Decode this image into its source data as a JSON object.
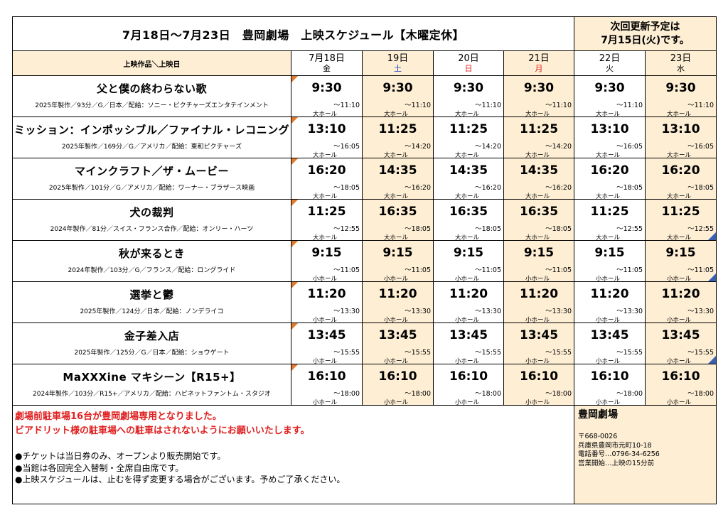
{
  "header": {
    "title": "7月18日～7月23日　豊岡劇場　上映スケジュール【木曜定休】",
    "notice": [
      "次回更新予定は",
      "7月15日(火)です。"
    ]
  },
  "table_header": {
    "corner_label": "上映作品＼上映日",
    "days": [
      {
        "date": "7月18日",
        "weekday": "金",
        "highlight": false
      },
      {
        "date": "19日",
        "weekday": "土",
        "highlight": true
      },
      {
        "date": "20日",
        "weekday": "日",
        "highlight": false
      },
      {
        "date": "21日",
        "weekday": "月",
        "highlight": true
      },
      {
        "date": "22日",
        "weekday": "火",
        "highlight": false
      },
      {
        "date": "23日",
        "weekday": "水",
        "highlight": true
      }
    ]
  },
  "colors": {
    "highlight": "#fdeed4",
    "saturday": "#1f3fc8",
    "sunday_holiday": "#e02020",
    "notice_red": "#e02020",
    "corner_orange": "#e07a2c",
    "corner_blue": "#3a5fb0"
  },
  "movies": [
    {
      "title": "父と僕の終わらない歌",
      "info": "2025年製作／93分／G／日本／配給：ソニー・ピクチャーズエンタテインメント",
      "showings": [
        {
          "start": "9:30",
          "end": "～11:10",
          "hall": "大ホール"
        },
        {
          "start": "9:30",
          "end": "～11:10",
          "hall": "大ホール"
        },
        {
          "start": "9:30",
          "end": "～11:10",
          "hall": "大ホール"
        },
        {
          "start": "9:30",
          "end": "～11:10",
          "hall": "大ホール"
        },
        {
          "start": "9:30",
          "end": "～11:10",
          "hall": "大ホール"
        },
        {
          "start": "9:30",
          "end": "～11:10",
          "hall": "大ホール"
        }
      ]
    },
    {
      "title": "ミッション：インポッシブル／ファイナル・レコニング",
      "info": "2025年製作／169分／G／アメリカ／配給：東和ピクチャーズ",
      "showings": [
        {
          "start": "13:10",
          "end": "～16:05",
          "hall": "大ホール"
        },
        {
          "start": "11:25",
          "end": "～14:20",
          "hall": "大ホール"
        },
        {
          "start": "11:25",
          "end": "～14:20",
          "hall": "大ホール"
        },
        {
          "start": "11:25",
          "end": "～14:20",
          "hall": "大ホール"
        },
        {
          "start": "13:10",
          "end": "～16:05",
          "hall": "大ホール"
        },
        {
          "start": "13:10",
          "end": "～16:05",
          "hall": "大ホール"
        }
      ]
    },
    {
      "title": "マインクラフト／ザ・ムービー",
      "info": "2025年製作／101分／G／アメリカ／配給：ワーナー・ブラザース映画",
      "showings": [
        {
          "start": "16:20",
          "end": "～18:05",
          "hall": "大ホール"
        },
        {
          "start": "14:35",
          "end": "～16:20",
          "hall": "大ホール"
        },
        {
          "start": "14:35",
          "end": "～16:20",
          "hall": "大ホール"
        },
        {
          "start": "14:35",
          "end": "～16:20",
          "hall": "大ホール"
        },
        {
          "start": "16:20",
          "end": "～18:05",
          "hall": "大ホール"
        },
        {
          "start": "16:20",
          "end": "～18:05",
          "hall": "大ホール"
        }
      ]
    },
    {
      "title": "犬の裁判",
      "info": "2024年製作／81分／スイス・フランス合作／配給：オンリー・ハーツ",
      "showings": [
        {
          "start": "11:25",
          "end": "～12:55",
          "hall": "大ホール"
        },
        {
          "start": "16:35",
          "end": "～18:05",
          "hall": "大ホール"
        },
        {
          "start": "16:35",
          "end": "～18:05",
          "hall": "大ホール"
        },
        {
          "start": "16:35",
          "end": "～18:05",
          "hall": "大ホール"
        },
        {
          "start": "11:25",
          "end": "～12:55",
          "hall": "大ホール"
        },
        {
          "start": "11:25",
          "end": "～12:55",
          "hall": "大ホール"
        }
      ]
    },
    {
      "title": "秋が来るとき",
      "info": "2024年製作／103分／G／フランス／配給：ロングライド",
      "showings": [
        {
          "start": "9:15",
          "end": "～11:05",
          "hall": "小ホール"
        },
        {
          "start": "9:15",
          "end": "～11:05",
          "hall": "小ホール"
        },
        {
          "start": "9:15",
          "end": "～11:05",
          "hall": "小ホール"
        },
        {
          "start": "9:15",
          "end": "～11:05",
          "hall": "小ホール"
        },
        {
          "start": "9:15",
          "end": "～11:05",
          "hall": "小ホール"
        },
        {
          "start": "9:15",
          "end": "～11:05",
          "hall": "小ホール"
        }
      ]
    },
    {
      "title": "選挙と鬱",
      "info": "2025年製作／124分／日本／配給：ノンデライコ",
      "showings": [
        {
          "start": "11:20",
          "end": "～13:30",
          "hall": "小ホール"
        },
        {
          "start": "11:20",
          "end": "～13:30",
          "hall": "小ホール"
        },
        {
          "start": "11:20",
          "end": "～13:30",
          "hall": "小ホール"
        },
        {
          "start": "11:20",
          "end": "～13:30",
          "hall": "小ホール"
        },
        {
          "start": "11:20",
          "end": "～13:30",
          "hall": "小ホール"
        },
        {
          "start": "11:20",
          "end": "～13:30",
          "hall": "小ホール"
        }
      ]
    },
    {
      "title": "金子差入店",
      "info": "2025年製作／125分／G／日本／配給：ショウゲート",
      "showings": [
        {
          "start": "13:45",
          "end": "～15:55",
          "hall": "小ホール"
        },
        {
          "start": "13:45",
          "end": "～15:55",
          "hall": "小ホール"
        },
        {
          "start": "13:45",
          "end": "～15:55",
          "hall": "小ホール"
        },
        {
          "start": "13:45",
          "end": "～15:55",
          "hall": "小ホール"
        },
        {
          "start": "13:45",
          "end": "～15:55",
          "hall": "小ホール"
        },
        {
          "start": "13:45",
          "end": "～15:55",
          "hall": "小ホール"
        }
      ]
    },
    {
      "title": "MaXXXine マキシーン【R15+】",
      "info": "2024年製作／103分／R15+／アメリカ／配給：ハピネットファントム・スタジオ",
      "showings": [
        {
          "start": "16:10",
          "end": "～18:00",
          "hall": "小ホール"
        },
        {
          "start": "16:10",
          "end": "～18:00",
          "hall": "小ホール"
        },
        {
          "start": "16:10",
          "end": "～18:00",
          "hall": "小ホール"
        },
        {
          "start": "16:10",
          "end": "～18:00",
          "hall": "小ホール"
        },
        {
          "start": "16:10",
          "end": "～18:00",
          "hall": "小ホール"
        },
        {
          "start": "16:10",
          "end": "～18:00",
          "hall": "小ホール"
        }
      ]
    }
  ],
  "footer": {
    "red_notices": [
      "劇場前駐車場16台が豊岡劇場専用となりました。",
      "ビアドリット様の駐車場への駐車はされないようにお願いいたします。"
    ],
    "notes": [
      "●チケットは当日券のみ、オープンより販売開始です。",
      "●当館は各回完全入替制・全席自由席です。",
      "●上映スケジュールは、止むを得ず変更する場合がございます。予めご了承ください。"
    ],
    "contact": {
      "name": "豊岡劇場",
      "postal": "〒668-0026",
      "address": "兵庫県豊岡市元町10-18",
      "phone": "電話番号…0796-34-6256",
      "hours": "営業開始…上映の15分前"
    }
  }
}
